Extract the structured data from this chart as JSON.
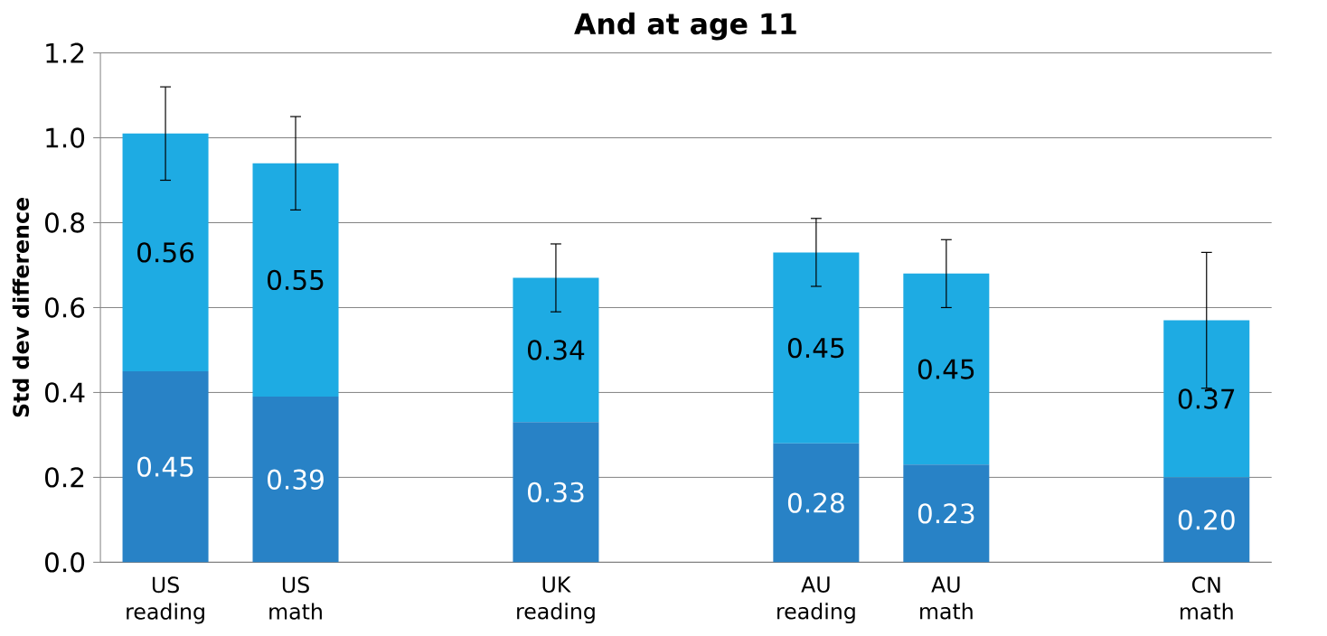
{
  "chart_data": {
    "type": "bar",
    "title": "And at age 11",
    "ylabel": "Std dev difference",
    "categories": [
      "US reading",
      "US math",
      null,
      "UK reading",
      null,
      "AU reading",
      "AU math",
      null,
      "CN math"
    ],
    "stacked": true,
    "series": [
      {
        "color": "#2882c6",
        "values": [
          0.45,
          0.39,
          null,
          0.33,
          null,
          0.28,
          0.23,
          null,
          0.2
        ],
        "value_labels": [
          "0.45",
          "0.39",
          null,
          "0.33",
          null,
          "0.28",
          "0.23",
          null,
          "0.20"
        ]
      },
      {
        "color": "#1eabe3",
        "values": [
          0.56,
          0.55,
          null,
          0.34,
          null,
          0.45,
          0.45,
          null,
          0.37
        ],
        "value_labels": [
          "0.56",
          "0.55",
          null,
          "0.34",
          null,
          "0.45",
          "0.45",
          null,
          "0.37"
        ],
        "errors": [
          0.11,
          0.11,
          null,
          0.08,
          null,
          0.08,
          0.08,
          null,
          0.16
        ]
      }
    ],
    "ylim": [
      0,
      1.2
    ],
    "yticks": [
      {
        "value": 0,
        "label": "0.0"
      },
      {
        "value": 0.2,
        "label": "0.2"
      },
      {
        "value": 0.4,
        "label": "0.4"
      },
      {
        "value": 0.6,
        "label": "0.6"
      },
      {
        "value": 0.8,
        "label": "0.8"
      },
      {
        "value": 1.0,
        "label": "1.0"
      },
      {
        "value": 1.2,
        "label": "1.2"
      }
    ],
    "grid": "y"
  }
}
